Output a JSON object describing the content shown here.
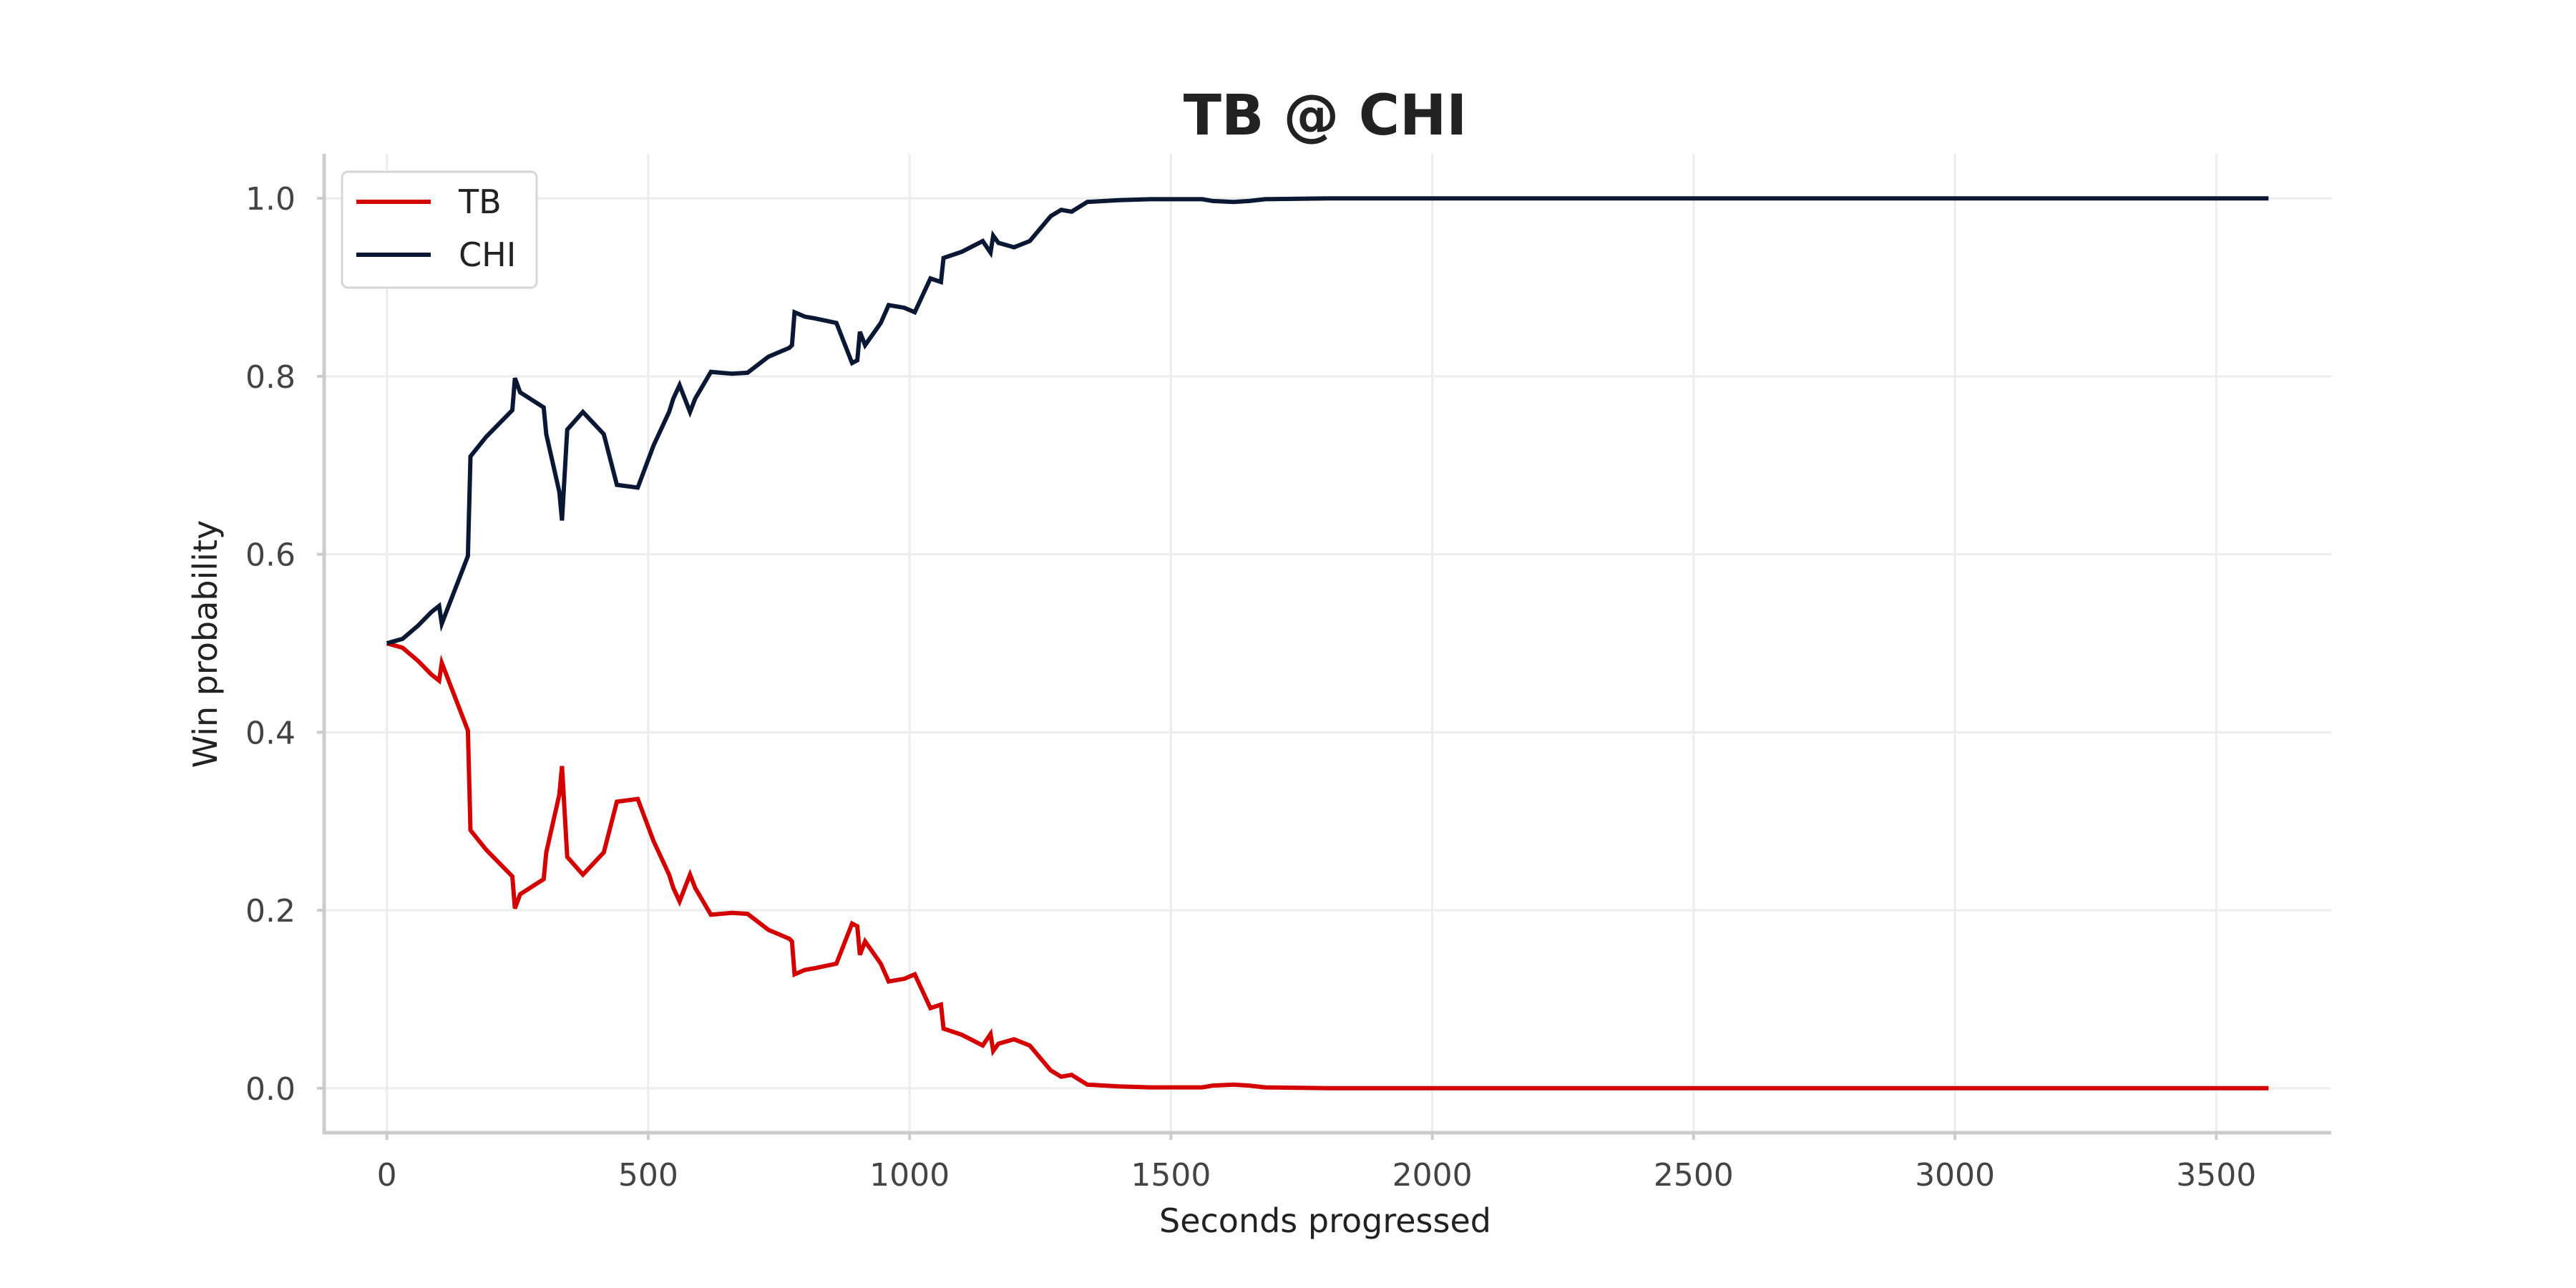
{
  "chart_data": {
    "type": "line",
    "title": "TB @ CHI",
    "xlabel": "Seconds progressed",
    "ylabel": "Win probability",
    "xlim": [
      -120,
      3720
    ],
    "ylim": [
      -0.05,
      1.05
    ],
    "xticks": [
      0,
      500,
      1000,
      1500,
      2000,
      2500,
      3000,
      3500
    ],
    "yticks": [
      0.0,
      0.2,
      0.4,
      0.6,
      0.8,
      1.0
    ],
    "xtick_labels": [
      "0",
      "500",
      "1000",
      "1500",
      "2000",
      "2500",
      "3000",
      "3500"
    ],
    "ytick_labels": [
      "0.0",
      "0.2",
      "0.4",
      "0.6",
      "0.8",
      "1.0"
    ],
    "grid": true,
    "legend": {
      "position": "top-left"
    },
    "series": [
      {
        "name": "TB",
        "color": "#d40000",
        "x": [
          0,
          30,
          60,
          85,
          100,
          105,
          155,
          160,
          190,
          220,
          240,
          245,
          255,
          300,
          305,
          330,
          335,
          345,
          375,
          415,
          440,
          480,
          510,
          540,
          548,
          560,
          580,
          590,
          620,
          660,
          690,
          730,
          770,
          775,
          780,
          800,
          820,
          860,
          890,
          900,
          905,
          915,
          945,
          960,
          990,
          1010,
          1040,
          1060,
          1065,
          1100,
          1140,
          1155,
          1160,
          1170,
          1200,
          1230,
          1270,
          1290,
          1310,
          1340,
          1400,
          1460,
          1520,
          1560,
          1580,
          1620,
          1650,
          1680,
          1800,
          2000,
          2400,
          2800,
          3200,
          3600
        ],
        "y": [
          0.5,
          0.495,
          0.48,
          0.465,
          0.458,
          0.478,
          0.402,
          0.29,
          0.268,
          0.25,
          0.238,
          0.202,
          0.218,
          0.235,
          0.265,
          0.33,
          0.362,
          0.26,
          0.24,
          0.265,
          0.322,
          0.325,
          0.278,
          0.24,
          0.225,
          0.21,
          0.24,
          0.225,
          0.195,
          0.197,
          0.196,
          0.178,
          0.168,
          0.165,
          0.128,
          0.133,
          0.135,
          0.14,
          0.185,
          0.182,
          0.15,
          0.165,
          0.14,
          0.12,
          0.123,
          0.128,
          0.09,
          0.094,
          0.067,
          0.06,
          0.048,
          0.061,
          0.042,
          0.05,
          0.055,
          0.048,
          0.02,
          0.013,
          0.015,
          0.004,
          0.002,
          0.001,
          0.001,
          0.001,
          0.003,
          0.004,
          0.003,
          0.001,
          0.0,
          0.0,
          0.0,
          0.0,
          0.0,
          0.0
        ]
      },
      {
        "name": "CHI",
        "color": "#0b1833",
        "x": [
          0,
          30,
          60,
          85,
          100,
          105,
          155,
          160,
          190,
          220,
          240,
          245,
          255,
          300,
          305,
          330,
          335,
          345,
          375,
          415,
          440,
          480,
          510,
          540,
          548,
          560,
          580,
          590,
          620,
          660,
          690,
          730,
          770,
          775,
          780,
          800,
          820,
          860,
          890,
          900,
          905,
          915,
          945,
          960,
          990,
          1010,
          1040,
          1060,
          1065,
          1100,
          1140,
          1155,
          1160,
          1170,
          1200,
          1230,
          1270,
          1290,
          1310,
          1340,
          1400,
          1460,
          1520,
          1560,
          1580,
          1620,
          1650,
          1680,
          1800,
          2000,
          2400,
          2800,
          3200,
          3600
        ],
        "y": [
          0.5,
          0.505,
          0.52,
          0.535,
          0.542,
          0.522,
          0.598,
          0.71,
          0.732,
          0.75,
          0.762,
          0.798,
          0.782,
          0.765,
          0.735,
          0.67,
          0.638,
          0.74,
          0.76,
          0.735,
          0.678,
          0.675,
          0.722,
          0.76,
          0.775,
          0.79,
          0.76,
          0.775,
          0.805,
          0.803,
          0.804,
          0.822,
          0.832,
          0.835,
          0.872,
          0.867,
          0.865,
          0.86,
          0.815,
          0.818,
          0.85,
          0.835,
          0.86,
          0.88,
          0.877,
          0.872,
          0.91,
          0.906,
          0.933,
          0.94,
          0.952,
          0.939,
          0.958,
          0.95,
          0.945,
          0.952,
          0.98,
          0.987,
          0.985,
          0.996,
          0.998,
          0.999,
          0.999,
          0.999,
          0.997,
          0.996,
          0.997,
          0.999,
          1.0,
          1.0,
          1.0,
          1.0,
          1.0,
          1.0
        ]
      }
    ]
  }
}
